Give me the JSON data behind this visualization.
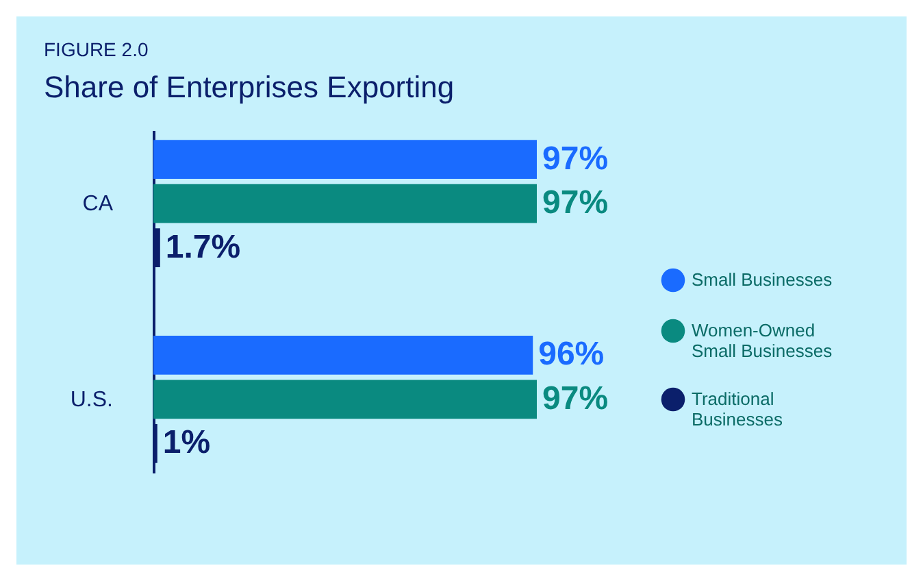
{
  "chart_data": {
    "type": "bar",
    "orientation": "horizontal",
    "title": "FIGURE 2.0",
    "subtitle": "Share of Enterprises Exporting",
    "categories": [
      "CA",
      "U.S."
    ],
    "series": [
      {
        "name": "Small Businesses",
        "color": "#1a6bff",
        "values": [
          97,
          96
        ],
        "value_labels": [
          "97%",
          "96%"
        ]
      },
      {
        "name": "Women-Owned Small Businesses",
        "color": "#0a8a80",
        "values": [
          97,
          97
        ],
        "value_labels": [
          "97%",
          "97%"
        ]
      },
      {
        "name": "Traditional Businesses",
        "color": "#0b1f6b",
        "values": [
          1.7,
          1
        ],
        "value_labels": [
          "1.7%",
          "1%"
        ]
      }
    ],
    "legend": "right"
  }
}
